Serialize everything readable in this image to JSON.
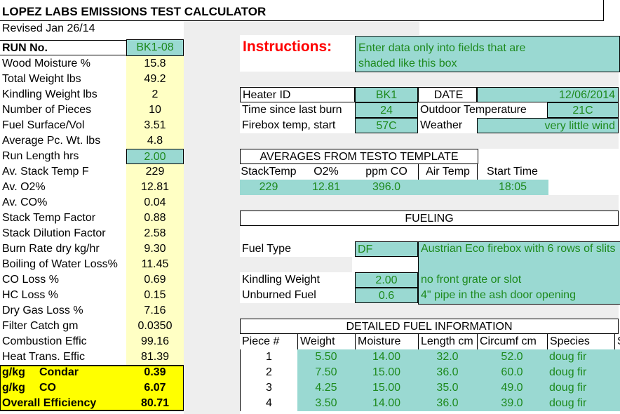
{
  "title": "LOPEZ LABS EMISSIONS TEST CALCULATOR",
  "revised": "Revised Jan 26/14",
  "run_label": "RUN No.",
  "run_value": "BK1-08",
  "left_rows": [
    {
      "label": "Wood Moisture %",
      "value": "15.8"
    },
    {
      "label": "Total Weight lbs",
      "value": "49.2"
    },
    {
      "label": "Kindling Weight lbs",
      "value": "2"
    },
    {
      "label": "Number of Pieces",
      "value": "10"
    },
    {
      "label": "Fuel Surface/Vol",
      "value": "3.51"
    },
    {
      "label": "Average Pc. Wt. lbs",
      "value": "4.8"
    },
    {
      "label": "Run Length hrs",
      "value": "2.00"
    },
    {
      "label": "Av. Stack Temp F",
      "value": "229"
    },
    {
      "label": "Av. O2%",
      "value": "12.81"
    },
    {
      "label": "Av. CO%",
      "value": "0.04"
    },
    {
      "label": "Stack Temp Factor",
      "value": "0.88"
    },
    {
      "label": "Stack Dilution Factor",
      "value": "2.58"
    },
    {
      "label": "Burn Rate  dry kg/hr",
      "value": "9.30"
    },
    {
      "label": "Boiling of Water Loss%",
      "value": "11.45"
    },
    {
      "label": "CO Loss %",
      "value": "0.69"
    },
    {
      "label": "HC Loss %",
      "value": "0.15"
    },
    {
      "label": "Dry Gas Loss %",
      "value": "7.16"
    },
    {
      "label": "Filter Catch gm",
      "value": "0.0350"
    },
    {
      "label": "Combustion Effic",
      "value": "99.16"
    },
    {
      "label": "Heat Trans. Effic",
      "value": "81.39"
    }
  ],
  "summary_rows": [
    {
      "label_a": "g/kg",
      "label_b": "Condar",
      "value": "0.39"
    },
    {
      "label_a": "g/kg",
      "label_b": "CO",
      "value": "6.07"
    },
    {
      "label_a": "Overall Efficiency",
      "label_b": "",
      "value": "80.71"
    }
  ],
  "instructions": {
    "heading": "Instructions:",
    "line1": "Enter data only into fields that are",
    "line2": "shaded like this box"
  },
  "heater": {
    "heater_id_label": "Heater ID",
    "heater_id": "BK1",
    "date_label": "DATE",
    "date": "12/06/2014",
    "time_label": "Time since last burn",
    "time": "24",
    "outdoor_label": "Outdoor Temperature",
    "outdoor": "21C",
    "firebox_label": "Firebox temp, start",
    "firebox": "57C",
    "weather_label": "Weather",
    "weather": "very little wind"
  },
  "averages": {
    "heading": "AVERAGES FROM TESTO TEMPLATE",
    "headers": [
      "StackTemp",
      "O2%",
      "ppm CO",
      "Air Temp",
      "Start Time"
    ],
    "values": [
      "229",
      "12.81",
      "396.0",
      "",
      "18:05"
    ]
  },
  "fueling": {
    "heading": "FUELING",
    "fuel_type_label": "Fuel Type",
    "fuel_type": "DF",
    "note1": "Austrian Eco firebox with 6 rows of slits",
    "kindling_label": "Kindling Weight",
    "kindling": "2.00",
    "note2": "no front grate or slot",
    "unburned_label": "Unburned Fuel",
    "unburned": "0.6",
    "note3": "4\" pipe in the ash door opening"
  },
  "detailed": {
    "heading": "DETAILED FUEL INFORMATION",
    "headers": [
      "Piece #",
      "Weight",
      "Moisture",
      "Length cm",
      "Circumf cm",
      "Species",
      "S"
    ],
    "rows": [
      {
        "piece": "1",
        "weight": "5.50",
        "moisture": "14.00",
        "length": "32.0",
        "circ": "52.0",
        "species": "doug fir"
      },
      {
        "piece": "2",
        "weight": "7.50",
        "moisture": "15.00",
        "length": "36.0",
        "circ": "60.0",
        "species": "doug fir"
      },
      {
        "piece": "3",
        "weight": "4.25",
        "moisture": "15.00",
        "length": "35.0",
        "circ": "49.0",
        "species": "doug fir"
      },
      {
        "piece": "4",
        "weight": "3.50",
        "moisture": "14.00",
        "length": "36.0",
        "circ": "39.0",
        "species": "doug fir"
      }
    ]
  },
  "colors": {
    "teal": "#9ad9d2",
    "yellow_light": "#ffffc4",
    "yellow": "#ffff00",
    "green_text": "#1e8a1e",
    "red_heading": "#ff0000"
  }
}
